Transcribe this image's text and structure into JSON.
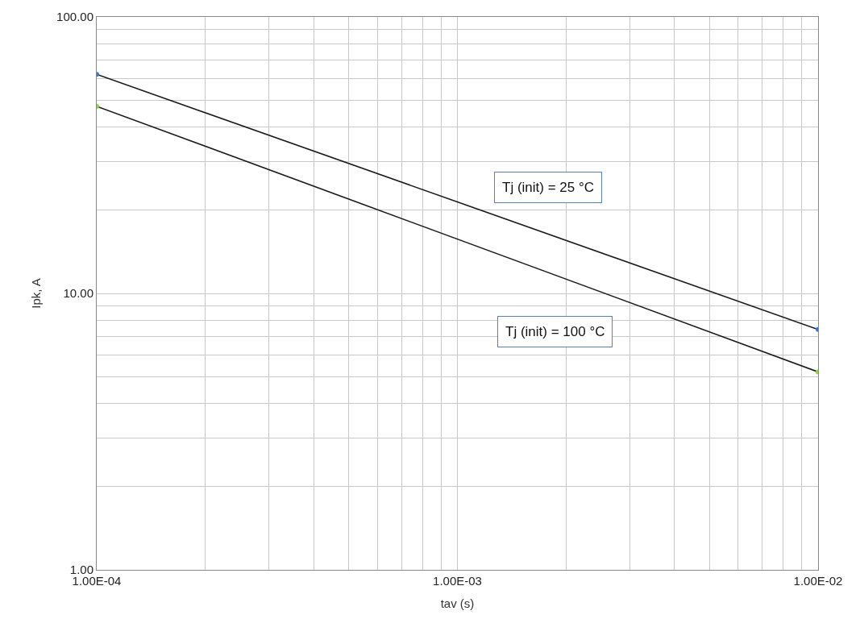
{
  "chart_data": {
    "type": "line",
    "xlabel": "tav (s)",
    "ylabel": "Ipk, A",
    "log": "xy",
    "grid": true,
    "marker": "circle",
    "line_style": "solid",
    "x": [
      0.0001,
      0.01
    ],
    "series": [
      {
        "color": "#1a1a1a",
        "colors": [
          "#4472c4",
          "#4472c4"
        ],
        "values": [
          62,
          7.4
        ]
      },
      {
        "color": "#1a1a1a",
        "colors": [
          "#92d050",
          "#92d050"
        ],
        "values": [
          47.5,
          5.2
        ]
      }
    ],
    "xlim": [
      0.0001,
      0.01
    ],
    "ylim": [
      1,
      100
    ],
    "xticks": [
      {
        "value": 0.0001,
        "label": "1.00E-04"
      },
      {
        "value": 0.0002,
        "label": null
      },
      {
        "value": 0.0003,
        "label": null
      },
      {
        "value": 0.0004,
        "label": null
      },
      {
        "value": 0.0005,
        "label": null
      },
      {
        "value": 0.0006,
        "label": null
      },
      {
        "value": 0.0007,
        "label": null
      },
      {
        "value": 0.0008,
        "label": null
      },
      {
        "value": 0.0009,
        "label": null
      },
      {
        "value": 0.001,
        "label": "1.00E-03"
      },
      {
        "value": 0.002,
        "label": null
      },
      {
        "value": 0.003,
        "label": null
      },
      {
        "value": 0.004,
        "label": null
      },
      {
        "value": 0.005,
        "label": null
      },
      {
        "value": 0.006,
        "label": null
      },
      {
        "value": 0.007,
        "label": null
      },
      {
        "value": 0.008,
        "label": null
      },
      {
        "value": 0.009,
        "label": null
      },
      {
        "value": 0.01,
        "label": "1.00E-02"
      }
    ],
    "yticks": [
      {
        "value": 1,
        "label": "1.00"
      },
      {
        "value": 2,
        "label": null
      },
      {
        "value": 3,
        "label": null
      },
      {
        "value": 4,
        "label": null
      },
      {
        "value": 5,
        "label": null
      },
      {
        "value": 6,
        "label": null
      },
      {
        "value": 7,
        "label": null
      },
      {
        "value": 8,
        "label": null
      },
      {
        "value": 9,
        "label": null
      },
      {
        "value": 10,
        "label": "10.00"
      },
      {
        "value": 20,
        "label": null
      },
      {
        "value": 30,
        "label": null
      },
      {
        "value": 40,
        "label": null
      },
      {
        "value": 50,
        "label": null
      },
      {
        "value": 60,
        "label": null
      },
      {
        "value": 70,
        "label": null
      },
      {
        "value": 80,
        "label": null
      },
      {
        "value": 90,
        "label": null
      },
      {
        "value": 100,
        "label": "100.00"
      }
    ],
    "annotations": [
      "Tj (init) = 25 °C",
      "Tj (init) = 100 °C"
    ]
  }
}
